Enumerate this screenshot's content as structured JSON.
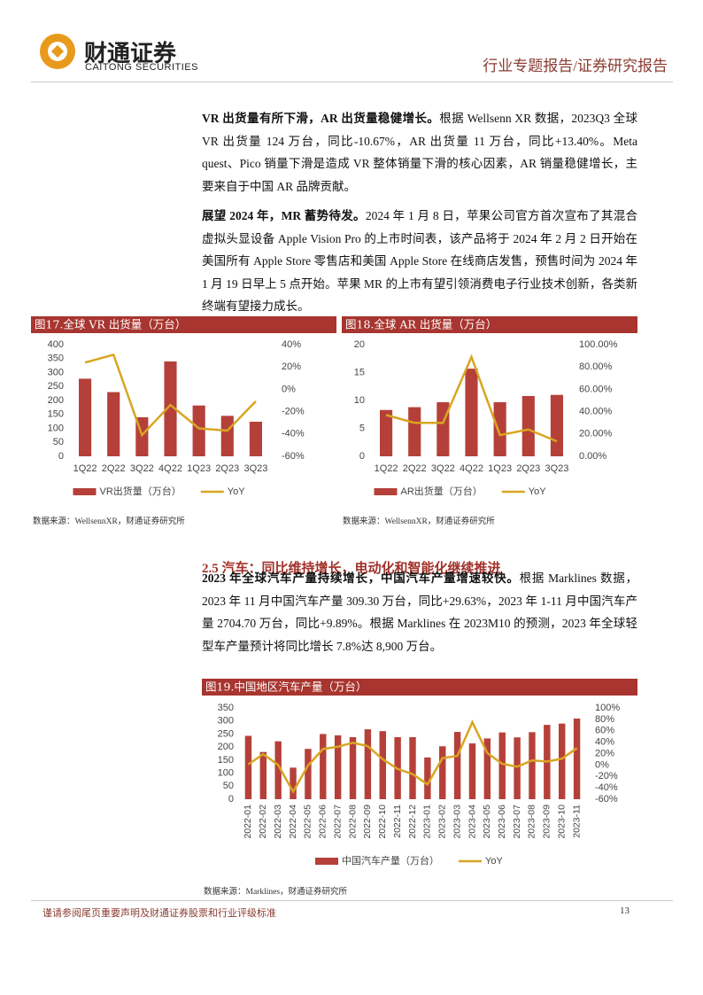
{
  "header": {
    "company_cn": "财通证券",
    "company_en": "CAITONG SECURITIES",
    "report_type": "行业专题报告/证券研究报告"
  },
  "body": {
    "paragraphs": [
      {
        "lead": "VR 出货量有所下滑，AR 出货量稳健增长。",
        "text": "根据 Wellsenn XR 数据，2023Q3 全球 VR 出货量 124 万台，同比-10.67%，AR 出货量 11 万台，同比+13.40%。Meta quest、Pico 销量下滑是造成 VR 整体销量下滑的核心因素，AR 销量稳健增长，主要来自于中国 AR 品牌贡献。"
      },
      {
        "lead": "展望 2024 年，MR 蓄势待发。",
        "text": "2024 年 1 月 8 日，苹果公司官方首次宣布了其混合虚拟头显设备 Apple Vision Pro 的上市时间表，该产品将于 2024 年 2 月 2 日开始在美国所有 Apple Store 零售店和美国 Apple Store 在线商店发售，预售时间为 2024 年 1 月 19 日早上 5 点开始。苹果 MR 的上市有望引领消费电子行业技术创新，各类新终端有望接力成长。"
      },
      {
        "lead": "2023 年全球汽车产量持续增长，中国汽车产量增速较快。",
        "text": "根据 Marklines 数据，2023 年 11 月中国汽车产量 309.30 万台，同比+29.63%，2023 年 1-11 月中国汽车产量 2704.70 万台，同比+9.89%。根据 Marklines 在 2023M10 的预测，2023 年全球轻型车产量预计将同比增长 7.8%达 8,900 万台。"
      }
    ],
    "section_heading": "2.5 汽车：同比维持增长，电动化和智能化继续推进"
  },
  "chart_data": [
    {
      "type": "bar_line",
      "title": "图17.全球 VR 出货量（万台）",
      "source": "数据来源：WellsennXR，财通证券研究所",
      "categories": [
        "1Q22",
        "2Q22",
        "3Q22",
        "4Q22",
        "1Q23",
        "2Q23",
        "3Q23"
      ],
      "series": [
        {
          "name": "VR出货量（万台）",
          "type": "bar",
          "color": "#b5403a",
          "values": [
            278,
            230,
            140,
            340,
            182,
            145,
            124
          ]
        },
        {
          "name": "YoY",
          "type": "line",
          "axis": "y2",
          "color": "#d9a521",
          "values": [
            24,
            31,
            -41,
            -14,
            -35,
            -37,
            -10.67
          ]
        }
      ],
      "ylim": [
        0,
        400
      ],
      "yticks": [
        0,
        50,
        100,
        150,
        200,
        250,
        300,
        350,
        400
      ],
      "y2lim": [
        -60,
        40
      ],
      "y2ticks": [
        {
          "value": -60,
          "label": "-60%"
        },
        {
          "value": -40,
          "label": "-40%"
        },
        {
          "value": -20,
          "label": "-20%"
        },
        {
          "value": 0,
          "label": "0%"
        },
        {
          "value": 20,
          "label": "20%"
        },
        {
          "value": 40,
          "label": "40%"
        }
      ]
    },
    {
      "type": "bar_line",
      "title": "图18.全球 AR 出货量（万台）",
      "source": "数据来源：WellsennXR，财通证券研究所",
      "categories": [
        "1Q22",
        "2Q22",
        "3Q22",
        "4Q22",
        "1Q23",
        "2Q23",
        "3Q23"
      ],
      "series": [
        {
          "name": "AR出货量（万台）",
          "type": "bar",
          "color": "#b5403a",
          "values": [
            8.3,
            8.8,
            9.7,
            15.7,
            9.7,
            10.8,
            11
          ]
        },
        {
          "name": "YoY",
          "type": "line",
          "axis": "y2",
          "color": "#d9a521",
          "values": [
            37,
            30,
            30,
            89,
            19,
            24,
            13.4
          ]
        }
      ],
      "ylim": [
        0,
        20
      ],
      "yticks": [
        0,
        5,
        10,
        15,
        20
      ],
      "y2lim": [
        0,
        100
      ],
      "y2ticks": [
        {
          "value": 0,
          "label": "0.00%"
        },
        {
          "value": 20,
          "label": "20.00%"
        },
        {
          "value": 40,
          "label": "40.00%"
        },
        {
          "value": 60,
          "label": "60.00%"
        },
        {
          "value": 80,
          "label": "80.00%"
        },
        {
          "value": 100,
          "label": "100.00%"
        }
      ]
    },
    {
      "type": "bar_line",
      "title": "图19.中国地区汽车产量（万台）",
      "source": "数据来源：Marklines，财通证券研究所",
      "rotate_labels": true,
      "categories": [
        "2022-01",
        "2022-02",
        "2022-03",
        "2022-04",
        "2022-05",
        "2022-06",
        "2022-07",
        "2022-08",
        "2022-09",
        "2022-10",
        "2022-11",
        "2022-12",
        "2023-01",
        "2023-02",
        "2023-03",
        "2023-04",
        "2023-05",
        "2023-06",
        "2023-07",
        "2023-08",
        "2023-09",
        "2023-10",
        "2023-11"
      ],
      "series": [
        {
          "name": "中国汽车产量（万台）",
          "type": "bar",
          "color": "#b5403a",
          "values": [
            243,
            181,
            222,
            121,
            193,
            250,
            245,
            238,
            268,
            261,
            238,
            238,
            160,
            203,
            258,
            214,
            233,
            256,
            237,
            257,
            285,
            290,
            309.3
          ]
        },
        {
          "name": "YoY",
          "type": "line",
          "axis": "y2",
          "color": "#d9a521",
          "values": [
            1,
            19,
            0,
            -47,
            -1,
            28,
            32,
            39,
            33,
            10,
            -7,
            -16,
            -34,
            12,
            16,
            75,
            21,
            2,
            -3,
            8,
            6,
            11,
            29.63
          ]
        }
      ],
      "ylim": [
        0,
        350
      ],
      "yticks": [
        0,
        50,
        100,
        150,
        200,
        250,
        300,
        350
      ],
      "y2lim": [
        -60,
        100
      ],
      "y2ticks": [
        {
          "value": -60,
          "label": "-60%"
        },
        {
          "value": -40,
          "label": "-40%"
        },
        {
          "value": -20,
          "label": "-20%"
        },
        {
          "value": 0,
          "label": "0%"
        },
        {
          "value": 20,
          "label": "20%"
        },
        {
          "value": 40,
          "label": "40%"
        },
        {
          "value": 60,
          "label": "60%"
        },
        {
          "value": 80,
          "label": "80%"
        },
        {
          "value": 100,
          "label": "100%"
        }
      ]
    }
  ],
  "footer": {
    "note": "谨请参阅尾页重要声明及财通证券股票和行业评级标准",
    "page": "13"
  }
}
